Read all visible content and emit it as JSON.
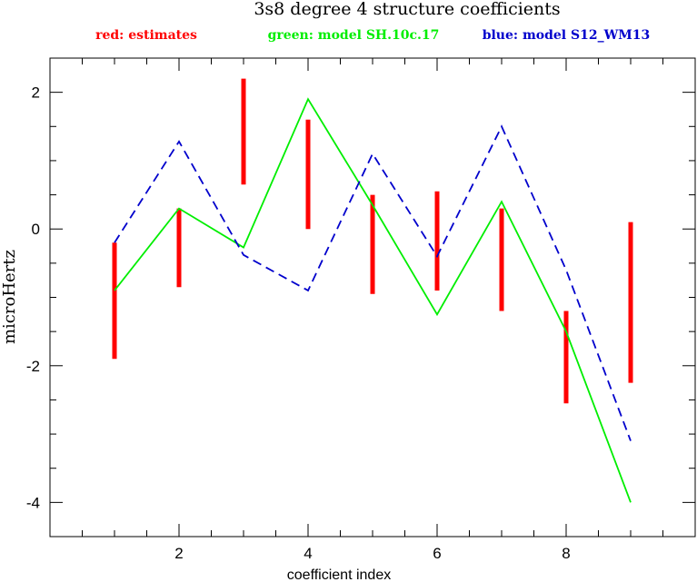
{
  "chart_data": {
    "type": "line",
    "title": "3s8 degree 4 structure coefficients",
    "xlabel": "coefficient index",
    "ylabel": "microHertz",
    "xlim": [
      0,
      10
    ],
    "ylim": [
      -4.5,
      2.5
    ],
    "x_ticks": [
      2,
      4,
      6,
      8
    ],
    "x_tick_labels": [
      "2",
      "4",
      "6",
      "8"
    ],
    "y_ticks": [
      2,
      0,
      -2,
      -4
    ],
    "y_tick_labels": [
      "2",
      "0",
      "-2",
      "-4"
    ],
    "legend": [
      {
        "label": "red: estimates",
        "color": "#ff0000"
      },
      {
        "label": "green: model SH.10c.17",
        "color": "#00ee00"
      },
      {
        "label": "blue: model S12_WM13",
        "color": "#0000cc"
      }
    ],
    "estimates": {
      "color": "#ff0000",
      "x": [
        1,
        2,
        3,
        4,
        5,
        6,
        7,
        8,
        9
      ],
      "low": [
        -1.9,
        -0.85,
        0.65,
        0.0,
        -0.95,
        -0.9,
        -1.2,
        -2.55,
        -2.25
      ],
      "high": [
        -0.2,
        0.3,
        2.2,
        1.6,
        0.5,
        0.55,
        0.3,
        -1.2,
        0.1
      ]
    },
    "series": [
      {
        "name": "green: model SH.10c.17",
        "color": "#00ee00",
        "dash": "solid",
        "x": [
          1,
          2,
          3,
          4,
          5,
          6,
          7,
          8,
          9
        ],
        "values": [
          -0.9,
          0.3,
          -0.27,
          1.9,
          0.35,
          -1.25,
          0.4,
          -1.5,
          -4.0
        ]
      },
      {
        "name": "blue: model S12_WM13",
        "color": "#0000cc",
        "dash": "dashed",
        "x": [
          1,
          2,
          3,
          4,
          5,
          6,
          7,
          8,
          9
        ],
        "values": [
          -0.2,
          1.28,
          -0.38,
          -0.9,
          1.1,
          -0.4,
          1.5,
          -0.6,
          -3.1
        ]
      }
    ]
  }
}
